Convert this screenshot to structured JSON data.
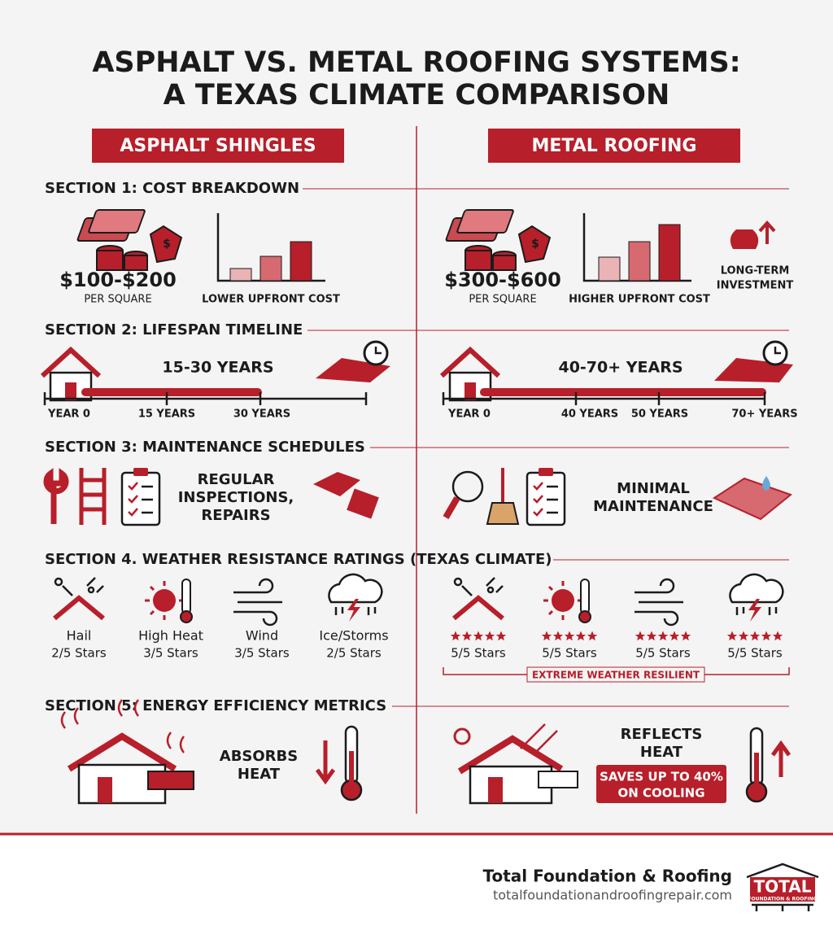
{
  "header": {
    "title_lines": [
      "ASPHALT VS. METAL ROOFING SYSTEMS:",
      "A TEXAS CLIMATE COMPARISON"
    ]
  },
  "columns": {
    "left": "ASPHALT SHINGLES",
    "right": "METAL ROOFING"
  },
  "cost": {
    "title": "SECTION 1: COST BREAKDOWN",
    "left": {
      "price": "$100-$200",
      "unit": "PER SQUARE",
      "note": "LOWER UPFRONT COST"
    },
    "right": {
      "price": "$300-$600",
      "unit": "PER SQUARE",
      "note": "HIGHER UPFRONT COST",
      "extra_lines": [
        "LONG-TERM",
        "INVESTMENT"
      ]
    }
  },
  "lifespan": {
    "title": "SECTION 2: LIFESPAN TIMELINE",
    "left": {
      "range": "15-30 YEARS",
      "ticks": [
        "YEAR 0",
        "15 YEARS",
        "30 YEARS"
      ]
    },
    "right": {
      "range": "40-70+ YEARS",
      "ticks": [
        "YEAR 0",
        "40 YEARS",
        "50 YEARS",
        "70+ YEARS"
      ]
    }
  },
  "maintenance": {
    "title": "SECTION 3: MAINTENANCE SCHEDULES",
    "left_lines": [
      "REGULAR",
      "INSPECTIONS,",
      "REPAIRS"
    ],
    "right_lines": [
      "MINIMAL",
      "MAINTENANCE"
    ]
  },
  "weather": {
    "title": "SECTION 4. WEATHER RESISTANCE RATINGS (TEXAS CLIMATE)",
    "left": [
      {
        "label": "Hail",
        "rating": "2/5 Stars"
      },
      {
        "label": "High Heat",
        "rating": "3/5 Stars"
      },
      {
        "label": "Wind",
        "rating": "3/5 Stars"
      },
      {
        "label": "Ice/Storms",
        "rating": "2/5 Stars"
      }
    ],
    "right_ratings": [
      "5/5 Stars",
      "5/5 Stars",
      "5/5 Stars",
      "5/5 Stars"
    ],
    "badge": "EXTREME WEATHER RESILIENT"
  },
  "energy": {
    "title": "SECTION 5: ENERGY EFFICIENCY METRICS",
    "left_lines": [
      "ABSORBS",
      "HEAT"
    ],
    "right_lines": [
      "REFLECTS",
      "HEAT"
    ],
    "badge_lines": [
      "SAVES UP TO 40%",
      "ON COOLING"
    ]
  },
  "footer": {
    "company": "Total Foundation & Roofing",
    "url": "totalfoundationandroofingrepair.com",
    "logo_lines": [
      "TOTAL",
      "FOUNDATION & ROOFING"
    ]
  }
}
